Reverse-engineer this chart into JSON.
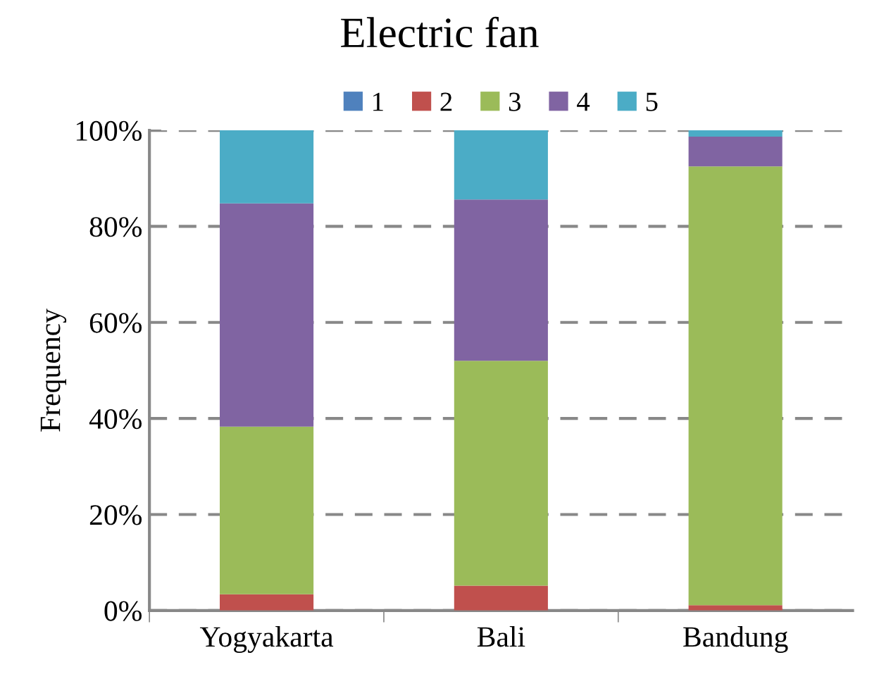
{
  "chart_data": {
    "type": "bar",
    "title": "Electric fan",
    "ylabel": "Frequency",
    "stacked": true,
    "categories": [
      "Yogyakarta",
      "Bali",
      "Bandung"
    ],
    "series": [
      {
        "name": "1",
        "color": "#4f81bd",
        "values": [
          0,
          0,
          0
        ]
      },
      {
        "name": "2",
        "color": "#c0504d",
        "values": [
          3.4,
          5.2,
          1.1
        ]
      },
      {
        "name": "3",
        "color": "#9bbb59",
        "values": [
          34.9,
          46.8,
          91.4
        ]
      },
      {
        "name": "4",
        "color": "#8064a2",
        "values": [
          46.5,
          33.6,
          6.2
        ]
      },
      {
        "name": "5",
        "color": "#4bacc6",
        "values": [
          15.2,
          14.4,
          1.3
        ]
      }
    ],
    "ylim": [
      0,
      100
    ],
    "yticks": [
      {
        "value": 0,
        "label": "0%"
      },
      {
        "value": 20,
        "label": "20%"
      },
      {
        "value": 40,
        "label": "40%"
      },
      {
        "value": 60,
        "label": "60%"
      },
      {
        "value": 80,
        "label": "80%"
      },
      {
        "value": 100,
        "label": "100%"
      }
    ],
    "grid": "y",
    "line_style": "dashed",
    "legend": "top"
  }
}
